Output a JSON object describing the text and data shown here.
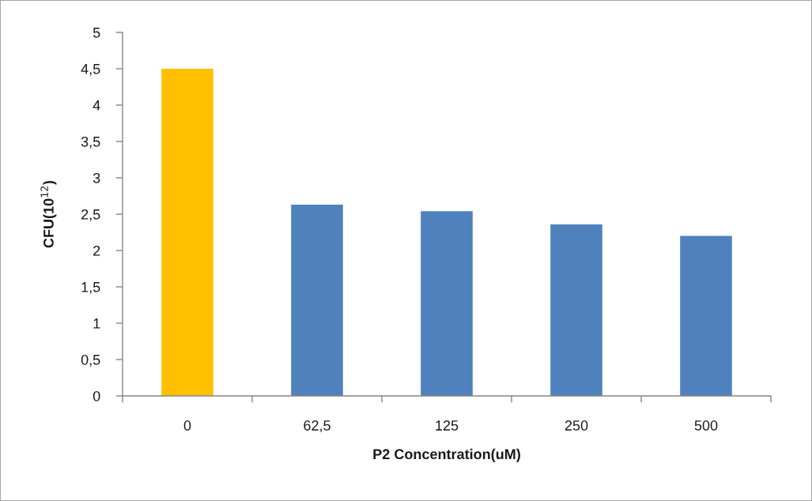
{
  "chart_data": {
    "type": "bar",
    "xlabel": "P2 Concentration(uM)",
    "ylabel": "CFU(10$^{12}$)",
    "categories": [
      "0",
      "62,5",
      "125",
      "250",
      "500"
    ],
    "values": [
      4.5,
      2.63,
      2.54,
      2.36,
      2.2
    ],
    "colors": [
      "#ffc000",
      "#4f81bd",
      "#4f81bd",
      "#4f81bd",
      "#4f81bd"
    ],
    "ylim": [
      0,
      5
    ],
    "yticks": [
      0,
      {
        "value": 0.5,
        "label": "0,5"
      },
      1,
      {
        "value": 1.5,
        "label": "1,5"
      },
      2,
      {
        "value": 2.5,
        "label": "2,5"
      },
      3,
      {
        "value": 3.5,
        "label": "3,5"
      },
      4,
      {
        "value": 4.5,
        "label": "4,5"
      },
      5
    ],
    "grid": false,
    "legend": false
  }
}
